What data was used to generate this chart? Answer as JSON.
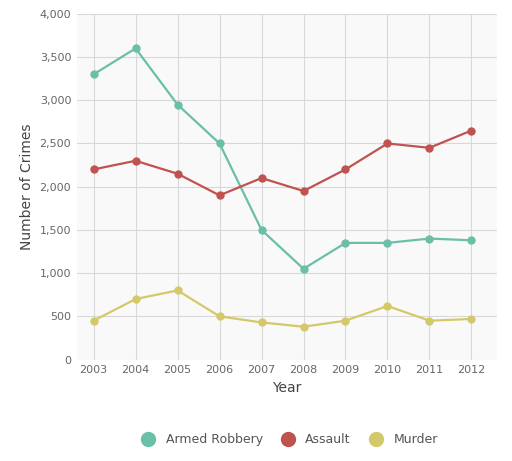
{
  "years": [
    2003,
    2004,
    2005,
    2006,
    2007,
    2008,
    2009,
    2010,
    2011,
    2012
  ],
  "armed_robbery": [
    3300,
    3600,
    2950,
    2500,
    1500,
    1050,
    1350,
    1350,
    1400,
    1380
  ],
  "assault": [
    2200,
    2300,
    2150,
    1900,
    2100,
    1950,
    2200,
    2500,
    2450,
    2650
  ],
  "murder": [
    450,
    700,
    800,
    500,
    430,
    380,
    450,
    620,
    450,
    470
  ],
  "armed_robbery_color": "#6abfa8",
  "assault_color": "#c0524f",
  "murder_color": "#d4c96a",
  "xlabel": "Year",
  "ylabel": "Number of Crimes",
  "ylim": [
    0,
    4000
  ],
  "yticks": [
    0,
    500,
    1000,
    1500,
    2000,
    2500,
    3000,
    3500,
    4000
  ],
  "background_color": "#ffffff",
  "plot_bg_color": "#f9f9f9",
  "grid_color": "#d8d8d8",
  "legend_labels": [
    "Armed Robbery",
    "Assault",
    "Murder"
  ],
  "marker": "o",
  "marker_size": 5,
  "line_width": 1.6,
  "tick_fontsize": 8,
  "label_fontsize": 10,
  "legend_fontsize": 9
}
